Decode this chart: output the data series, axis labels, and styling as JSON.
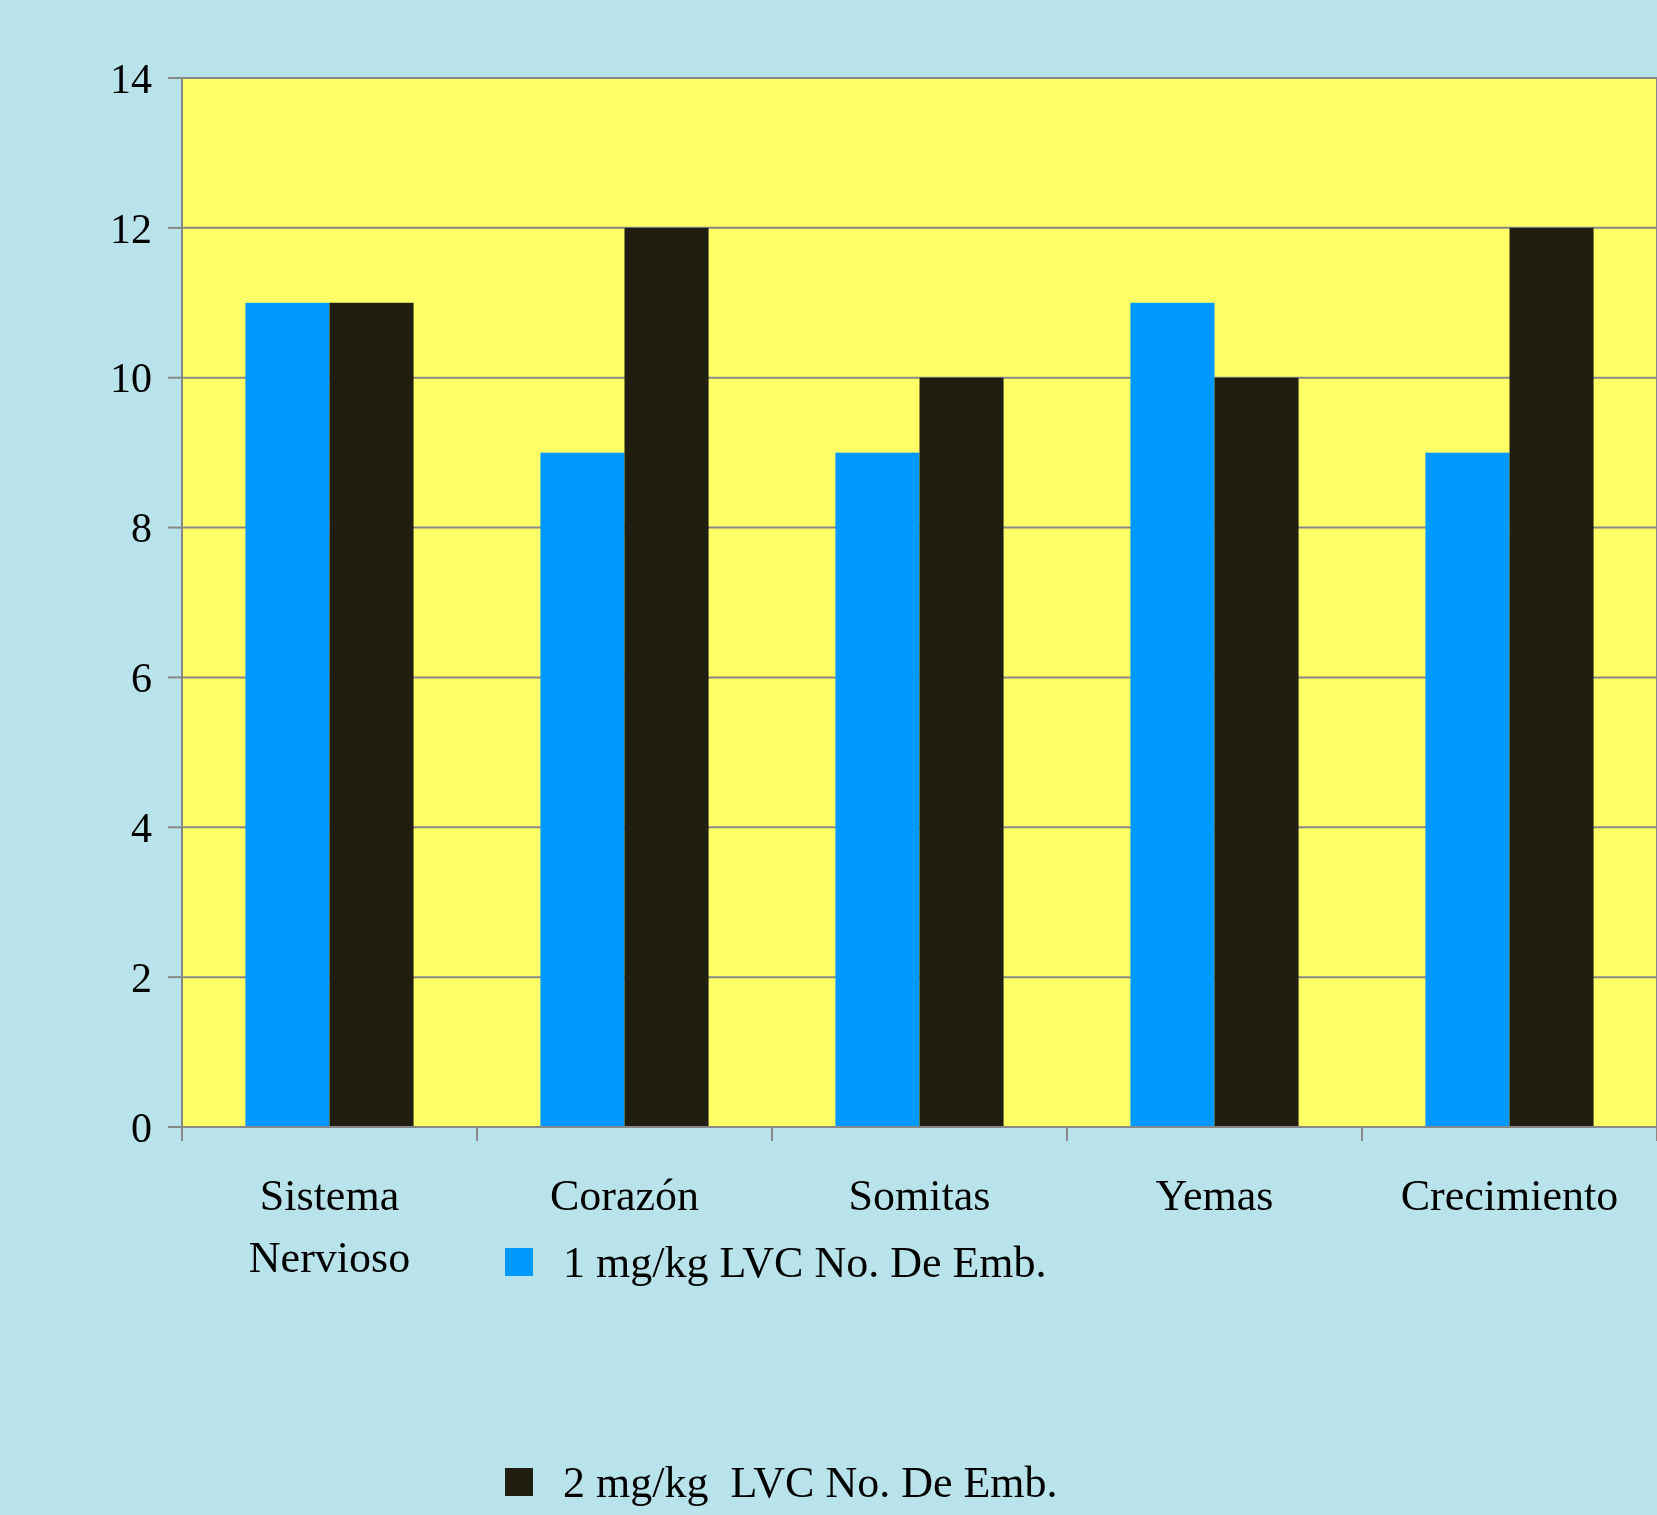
{
  "chart_data": {
    "type": "bar",
    "categories": [
      "Sistema Nervioso",
      "Corazón",
      "Somitas",
      "Yemas",
      "Crecimiento"
    ],
    "series": [
      {
        "name": "1 mg/kg LVC No. De Emb.",
        "color": "#0099ff",
        "values": [
          11,
          9,
          9,
          11,
          9
        ]
      },
      {
        "name": "2 mg/kg  LVC No. De Emb.",
        "color": "#201e10",
        "values": [
          11,
          12,
          10,
          10,
          12
        ]
      }
    ],
    "ylim": [
      0,
      14
    ],
    "yticks": [
      0,
      2,
      4,
      6,
      8,
      10,
      12,
      14
    ],
    "grid": "y",
    "legend": "bottom"
  }
}
